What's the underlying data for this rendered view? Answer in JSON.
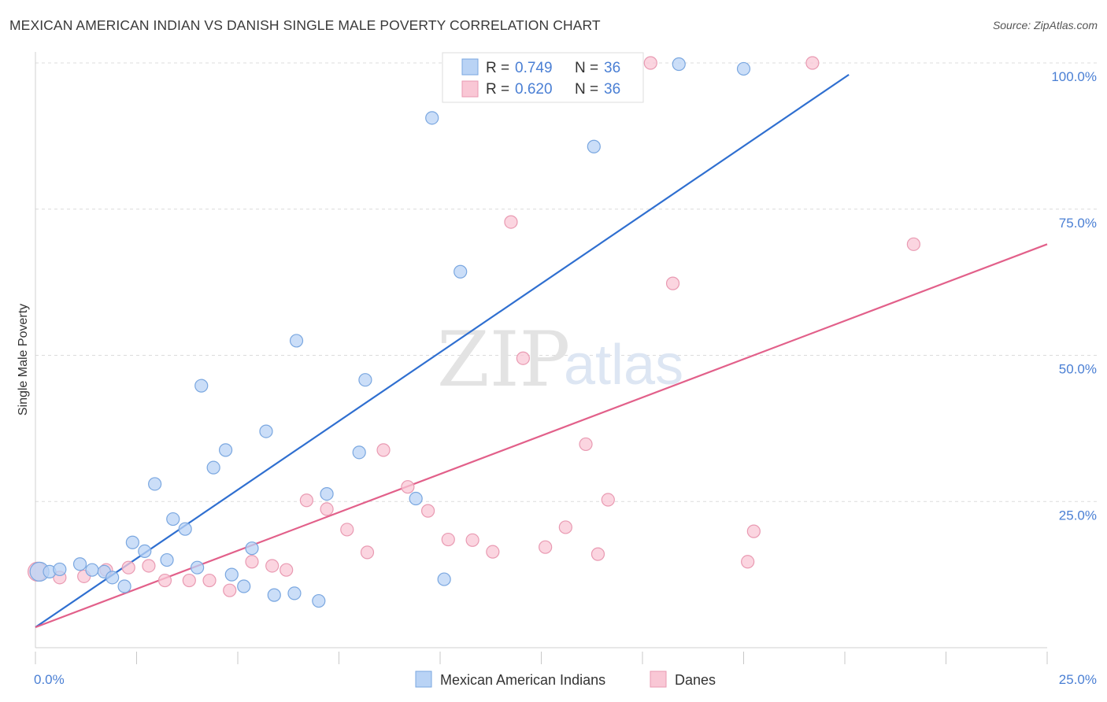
{
  "title": "MEXICAN AMERICAN INDIAN VS DANISH SINGLE MALE POVERTY CORRELATION CHART",
  "source": "Source: ZipAtlas.com",
  "watermark": {
    "zip": "ZIP",
    "atlas": "atlas"
  },
  "colors": {
    "blue_fill": "#b9d3f5",
    "blue_stroke": "#7aa7e0",
    "blue_line": "#2f6fd0",
    "pink_fill": "#f9c7d5",
    "pink_stroke": "#e99ab2",
    "pink_line": "#e2608a",
    "tick_text": "#4a7fd4",
    "grid": "#dcdcdc"
  },
  "stats": [
    {
      "r_label": "R =",
      "r_value": "0.749",
      "n_label": "N =",
      "n_value": "36",
      "series": "blue"
    },
    {
      "r_label": "R =",
      "r_value": "0.620",
      "n_label": "N =",
      "n_value": "36",
      "series": "pink"
    }
  ],
  "chart_data": {
    "type": "scatter",
    "title": "MEXICAN AMERICAN INDIAN VS DANISH SINGLE MALE POVERTY CORRELATION CHART",
    "xlabel": "",
    "ylabel": "Single Male Poverty",
    "xlim": [
      0,
      25
    ],
    "ylim": [
      0,
      102
    ],
    "x_tick_labels": [
      {
        "value": 0,
        "label": "0.0%"
      },
      {
        "value": 25,
        "label": "25.0%"
      }
    ],
    "y_tick_labels": [
      {
        "value": 25,
        "label": "25.0%"
      },
      {
        "value": 50,
        "label": "50.0%"
      },
      {
        "value": 75,
        "label": "75.0%"
      },
      {
        "value": 100,
        "label": "100.0%"
      }
    ],
    "grid": "horizontal dashed",
    "legend_position": "bottom-center",
    "series": [
      {
        "name": "Mexican American Indians",
        "color": "blue",
        "trend": {
          "x0": 0,
          "y0": 3.5,
          "x1": 20.1,
          "y1": 98
        },
        "points": [
          [
            0.1,
            13.0
          ],
          [
            0.35,
            13.0
          ],
          [
            0.6,
            13.4
          ],
          [
            1.1,
            14.3
          ],
          [
            1.4,
            13.3
          ],
          [
            1.7,
            13.0
          ],
          [
            1.9,
            12.0
          ],
          [
            2.2,
            10.5
          ],
          [
            2.4,
            18.0
          ],
          [
            2.7,
            16.5
          ],
          [
            2.95,
            28.0
          ],
          [
            3.25,
            15.0
          ],
          [
            3.4,
            22.0
          ],
          [
            3.7,
            20.3
          ],
          [
            4.0,
            13.7
          ],
          [
            4.1,
            44.8
          ],
          [
            4.4,
            30.8
          ],
          [
            4.7,
            33.8
          ],
          [
            4.85,
            12.5
          ],
          [
            5.15,
            10.5
          ],
          [
            5.35,
            17.0
          ],
          [
            5.7,
            37.0
          ],
          [
            5.9,
            9.0
          ],
          [
            6.4,
            9.3
          ],
          [
            6.45,
            52.5
          ],
          [
            7.0,
            8.0
          ],
          [
            7.2,
            26.3
          ],
          [
            8.0,
            33.4
          ],
          [
            8.15,
            45.8
          ],
          [
            9.4,
            25.5
          ],
          [
            9.8,
            90.6
          ],
          [
            10.1,
            11.7
          ],
          [
            10.5,
            64.3
          ],
          [
            13.8,
            85.7
          ],
          [
            15.9,
            99.8
          ],
          [
            17.5,
            99.0
          ]
        ]
      },
      {
        "name": "Danes",
        "color": "pink",
        "trend": {
          "x0": 0,
          "y0": 3.5,
          "x1": 25,
          "y1": 69
        },
        "points": [
          [
            0.05,
            13.0
          ],
          [
            0.6,
            12.0
          ],
          [
            1.2,
            12.2
          ],
          [
            1.75,
            13.3
          ],
          [
            2.3,
            13.7
          ],
          [
            2.8,
            14.0
          ],
          [
            3.2,
            11.5
          ],
          [
            3.8,
            11.5
          ],
          [
            4.3,
            11.5
          ],
          [
            4.8,
            9.8
          ],
          [
            5.35,
            14.7
          ],
          [
            5.85,
            14.0
          ],
          [
            6.2,
            13.3
          ],
          [
            6.7,
            25.2
          ],
          [
            7.2,
            23.7
          ],
          [
            7.7,
            20.2
          ],
          [
            8.2,
            16.3
          ],
          [
            8.6,
            33.8
          ],
          [
            9.2,
            27.5
          ],
          [
            9.7,
            23.4
          ],
          [
            10.2,
            18.5
          ],
          [
            10.8,
            18.4
          ],
          [
            11.3,
            16.4
          ],
          [
            11.75,
            72.8
          ],
          [
            12.05,
            49.5
          ],
          [
            12.6,
            17.2
          ],
          [
            13.1,
            20.6
          ],
          [
            13.6,
            34.8
          ],
          [
            13.9,
            16.0
          ],
          [
            14.15,
            25.3
          ],
          [
            15.2,
            100.0
          ],
          [
            15.75,
            62.3
          ],
          [
            17.6,
            14.7
          ],
          [
            17.75,
            19.9
          ],
          [
            19.2,
            100.0
          ],
          [
            21.7,
            69.0
          ]
        ]
      }
    ]
  },
  "legend": [
    {
      "label": "Mexican American Indians",
      "color": "blue"
    },
    {
      "label": "Danes",
      "color": "pink"
    }
  ]
}
